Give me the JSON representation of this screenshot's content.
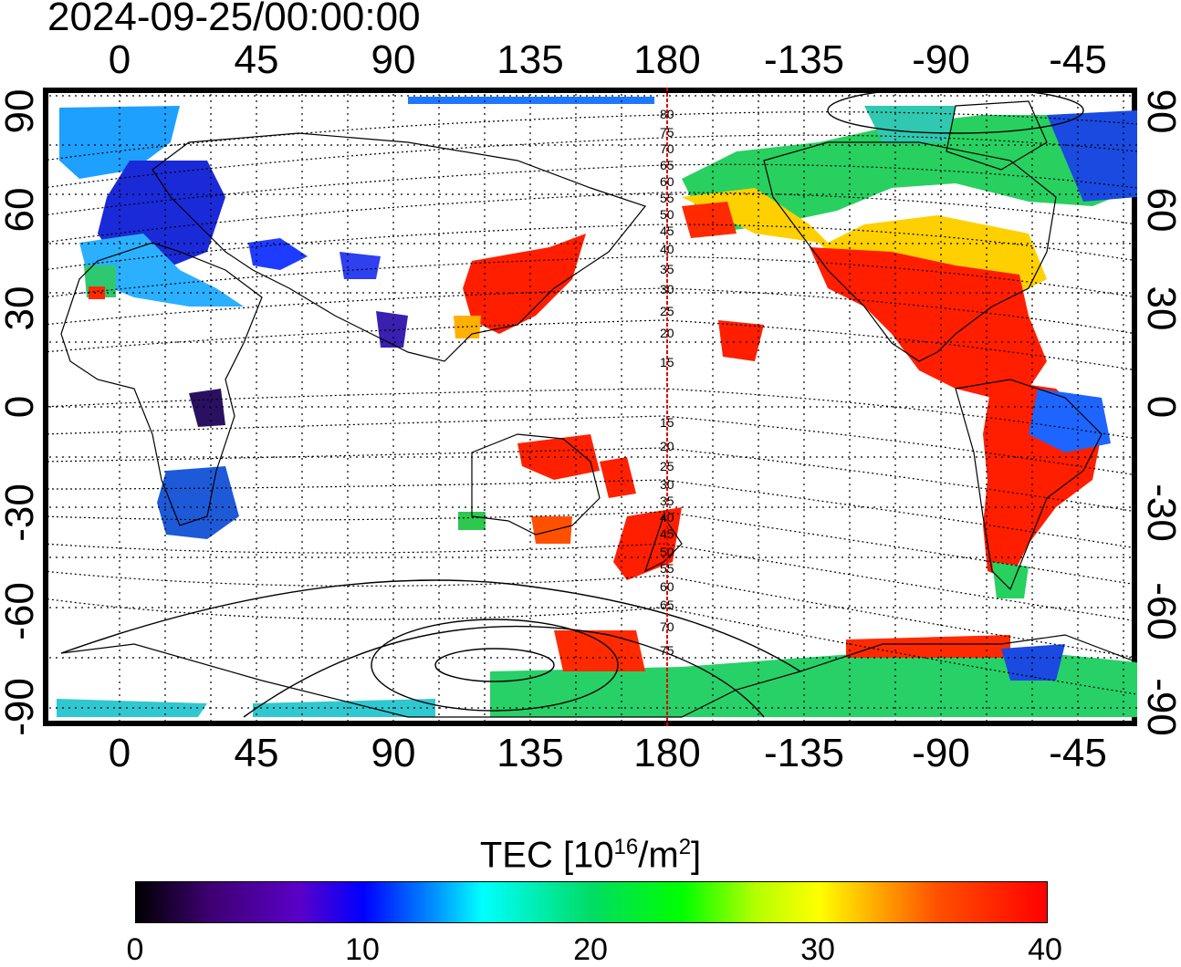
{
  "timestamp": "2024-09-25/00:00:00",
  "top_axis_ticks": [
    "0",
    "45",
    "90",
    "135",
    "180",
    "-135",
    "-90",
    "-45"
  ],
  "bottom_axis_ticks": [
    "0",
    "45",
    "90",
    "135",
    "180",
    "-135",
    "-90",
    "-45"
  ],
  "left_axis_ticks": [
    "90",
    "60",
    "30",
    "0",
    "-30",
    "-60",
    "-90"
  ],
  "right_axis_ticks": [
    "90",
    "60",
    "30",
    "0",
    "-30",
    "-60",
    "-90"
  ],
  "magnetic_latitude_labels_north": [
    "80",
    "75",
    "70",
    "65",
    "60",
    "55",
    "50",
    "45",
    "40",
    "35",
    "30",
    "25",
    "20",
    "15"
  ],
  "magnetic_latitude_labels_south": [
    "15",
    "20",
    "25",
    "30",
    "35",
    "40",
    "45",
    "50",
    "55",
    "60",
    "65",
    "70",
    "75"
  ],
  "colorbar": {
    "title_prefix": "TEC  [10",
    "title_exponent": "16",
    "title_mid": "/m",
    "title_exponent2": "2",
    "title_suffix": "]",
    "tick_labels": [
      "0",
      "10",
      "20",
      "30",
      "40"
    ],
    "min": 0,
    "max": 40,
    "palette": [
      "#000000",
      "#5a00c8",
      "#0000ff",
      "#00ffff",
      "#00ff00",
      "#ffff00",
      "#ff0000"
    ]
  },
  "map_style": {
    "projection": "equirectangular",
    "grid": "dotted",
    "subsolar_meridian_color": "#e00000",
    "coastline_color": "#000000"
  }
}
